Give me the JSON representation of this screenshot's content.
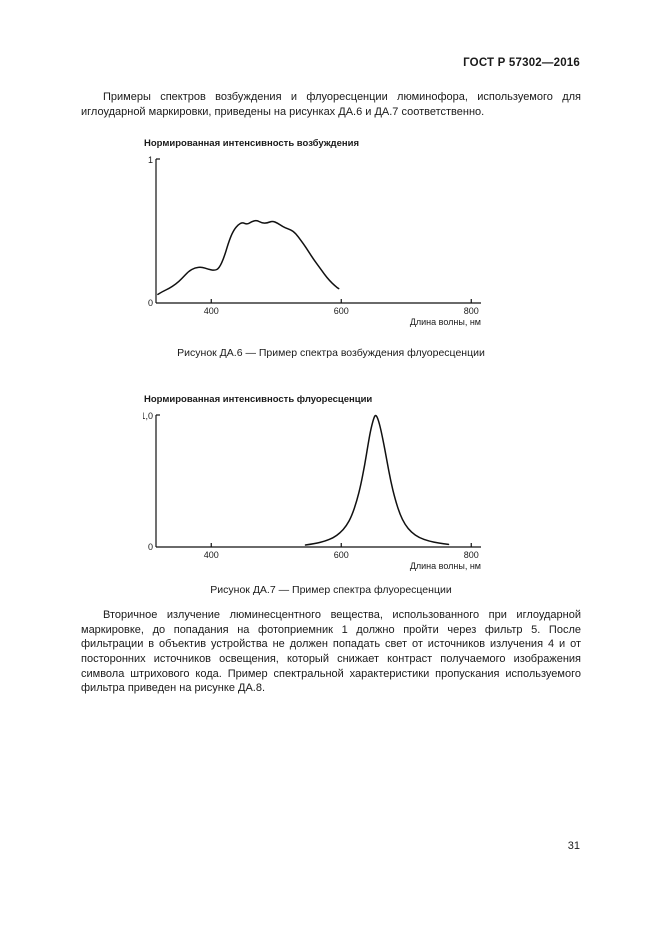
{
  "page": {
    "header": "ГОСТ Р 57302—2016",
    "page_number": "31"
  },
  "paragraphs": {
    "intro": "Примеры спектров возбуждения и флуоресценции люминофора, используемого для иглоударной маркировки, приведены на рисунках ДА.6 и ДА.7 соответственно.",
    "body": "Вторичное излучение люминесцентного вещества, использованного при иглоударной маркировке, до попадания на фотоприемник 1 должно пройти через фильтр 5. После фильтрации в объектив устройства не должен попадать свет от источников излучения 4 и от посторонних источников освещения, который снижает контраст получаемого изображения символа штрихового кода. Пример спектральной характеристики пропускания используемого фильтра приведен на рисунке ДА.8."
  },
  "figures": [
    {
      "caption": "Рисунок ДА.6 — Пример спектра возбуждения флуоресценции"
    },
    {
      "caption": "Рисунок ДА.7 — Пример спектра флуоресценции"
    }
  ],
  "chart_data": [
    {
      "type": "line",
      "title": "Нормированная интенсивность возбуждения",
      "xlabel": "Длина волны, нм",
      "ylabel": "Нормированная интенсивность возбуждения",
      "grid": false,
      "legend": false,
      "xlim": [
        315,
        815
      ],
      "ylim": [
        0,
        1
      ],
      "x_ticks": [
        400,
        600,
        800
      ],
      "y_top_label": "1",
      "y_bottom_label": "0",
      "line_color": "#111111",
      "x": [
        318,
        325,
        335,
        345,
        355,
        365,
        375,
        385,
        395,
        405,
        412,
        420,
        428,
        435,
        442,
        448,
        455,
        462,
        470,
        478,
        486,
        494,
        502,
        510,
        518,
        526,
        534,
        542,
        550,
        558,
        566,
        574,
        582,
        590,
        596
      ],
      "y": [
        0.06,
        0.08,
        0.1,
        0.13,
        0.17,
        0.22,
        0.245,
        0.25,
        0.235,
        0.225,
        0.24,
        0.32,
        0.44,
        0.51,
        0.545,
        0.56,
        0.545,
        0.565,
        0.575,
        0.555,
        0.555,
        0.57,
        0.555,
        0.53,
        0.515,
        0.5,
        0.46,
        0.41,
        0.355,
        0.3,
        0.25,
        0.2,
        0.155,
        0.12,
        0.1
      ]
    },
    {
      "type": "line",
      "title": "Нормированная интенсивность флуоресценции",
      "xlabel": "Длина волны, нм",
      "ylabel": "Нормированная интенсивность флуоресценции",
      "grid": false,
      "legend": false,
      "xlim": [
        315,
        815
      ],
      "ylim": [
        0,
        1
      ],
      "x_ticks": [
        400,
        600,
        800
      ],
      "y_top_label": "1,0",
      "y_bottom_label": "0",
      "line_color": "#111111",
      "x": [
        545,
        560,
        575,
        588,
        598,
        608,
        616,
        624,
        630,
        636,
        641,
        645,
        649,
        652,
        655,
        659,
        664,
        670,
        676,
        683,
        690,
        698,
        708,
        720,
        735,
        750,
        765
      ],
      "y": [
        0.015,
        0.025,
        0.045,
        0.07,
        0.105,
        0.16,
        0.235,
        0.35,
        0.47,
        0.62,
        0.77,
        0.88,
        0.96,
        1.0,
        0.99,
        0.93,
        0.82,
        0.66,
        0.5,
        0.36,
        0.25,
        0.17,
        0.11,
        0.07,
        0.045,
        0.03,
        0.02
      ]
    }
  ]
}
